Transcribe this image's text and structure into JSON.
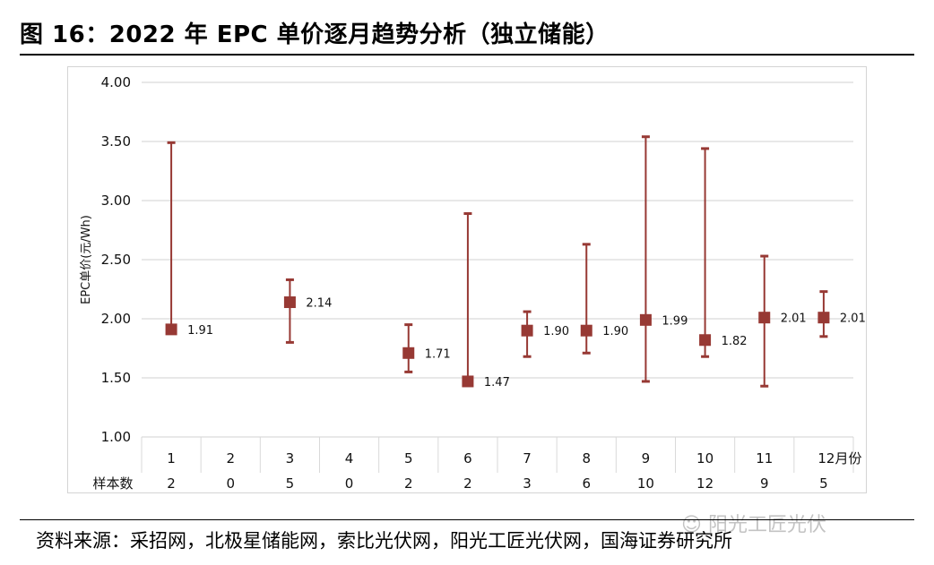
{
  "title": "图 16：2022 年 EPC 单价逐月趋势分析（独立储能）",
  "source": "资料来源：采招网，北极星储能网，索比光伏网，阳光工匠光伏网，国海证券研究所",
  "watermark": "阳光工匠光伏",
  "chart_data": {
    "type": "scatter",
    "subtype": "error-bar",
    "ylabel": "EPC单价(元/Wh)",
    "xunit_label": "月份",
    "sample_row_label": "样本数",
    "ylim": [
      1.0,
      4.0
    ],
    "yticks": [
      "1.00",
      "1.50",
      "2.00",
      "2.50",
      "3.00",
      "3.50",
      "4.00"
    ],
    "categories": [
      "1",
      "2",
      "3",
      "4",
      "5",
      "6",
      "7",
      "8",
      "9",
      "10",
      "11",
      "12"
    ],
    "sample_counts": [
      "2",
      "0",
      "5",
      "0",
      "2",
      "2",
      "3",
      "6",
      "10",
      "12",
      "9",
      "5"
    ],
    "values": [
      1.91,
      null,
      2.14,
      null,
      1.71,
      1.47,
      1.9,
      1.9,
      1.99,
      1.82,
      2.01,
      2.01
    ],
    "labels": [
      "1.91",
      "",
      "2.14",
      "",
      "1.71",
      "1.47",
      "1.90",
      "1.90",
      "1.99",
      "1.82",
      "2.01",
      "2.01"
    ],
    "highs": [
      3.49,
      null,
      2.33,
      null,
      1.95,
      2.89,
      2.06,
      2.63,
      3.54,
      3.44,
      2.53,
      2.23
    ],
    "lows": [
      1.91,
      null,
      1.8,
      null,
      1.55,
      1.47,
      1.68,
      1.71,
      1.47,
      1.68,
      1.43,
      1.85
    ],
    "grid": true,
    "colors": {
      "marker": "#973934",
      "errorbar": "#973934",
      "grid": "#d9d9d9"
    }
  }
}
